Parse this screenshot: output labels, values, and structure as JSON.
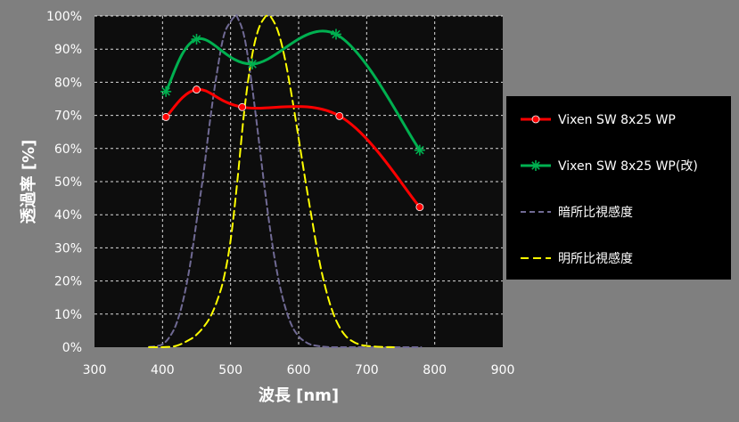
{
  "chart_data": {
    "type": "line",
    "xlabel": "波長 [nm]",
    "ylabel": "透過率 [%]",
    "xlim": [
      300,
      900
    ],
    "ylim": [
      0,
      100
    ],
    "x_ticks": [
      "300",
      "400",
      "500",
      "600",
      "700",
      "800",
      "900"
    ],
    "y_ticks": [
      "0%",
      "10%",
      "20%",
      "30%",
      "40%",
      "50%",
      "60%",
      "70%",
      "80%",
      "90%",
      "100%"
    ],
    "grid": true,
    "legend_position": "right",
    "colors": {
      "background": "#7f7f7f",
      "plot_area": "#0d0d0d",
      "grid": "#ffffff",
      "text": "#ffffff"
    },
    "series": [
      {
        "name": "Vixen SW 8x25 WP",
        "color": "#ff0000",
        "marker": "circle",
        "line_style": "solid",
        "x": [
          405,
          450,
          517,
          660,
          778
        ],
        "y": [
          69.5,
          77.8,
          72.5,
          69.8,
          42.3
        ]
      },
      {
        "name": "Vixen SW 8x25 WP(改)",
        "color": "#00b050",
        "marker": "asterisk",
        "line_style": "solid",
        "x": [
          405,
          450,
          532,
          655,
          778
        ],
        "y": [
          77.2,
          93.0,
          85.5,
          94.5,
          59.5
        ]
      },
      {
        "name": "暗所比視感度",
        "color": "#706a94",
        "marker": "none",
        "line_style": "dashed",
        "x": [
          380,
          390,
          400,
          410,
          420,
          430,
          440,
          450,
          460,
          470,
          480,
          490,
          500,
          507,
          510,
          520,
          530,
          540,
          550,
          560,
          570,
          580,
          590,
          600,
          610,
          620,
          640,
          660,
          700,
          780
        ],
        "y": [
          0.1,
          0.3,
          0.9,
          3.0,
          6.9,
          13.9,
          24.3,
          38.0,
          52.2,
          68.8,
          82.9,
          94.0,
          98.3,
          100,
          99.6,
          93.9,
          81.1,
          65.0,
          48.2,
          32.9,
          20.9,
          12.3,
          6.5,
          3.3,
          1.6,
          0.7,
          0.1,
          0.0,
          0.0,
          0.0
        ]
      },
      {
        "name": "明所比視感度",
        "color": "#ffff00",
        "marker": "none",
        "line_style": "dashed",
        "x": [
          380,
          400,
          420,
          440,
          450,
          460,
          470,
          480,
          490,
          500,
          510,
          520,
          530,
          540,
          550,
          555,
          560,
          570,
          580,
          590,
          600,
          610,
          620,
          630,
          640,
          650,
          660,
          670,
          680,
          690,
          700,
          720,
          740
        ],
        "y": [
          0.0,
          0.04,
          0.4,
          2.3,
          3.8,
          6.0,
          9.1,
          13.9,
          20.8,
          32.3,
          50.3,
          71.0,
          86.2,
          95.4,
          99.5,
          100,
          99.5,
          95.2,
          87.0,
          75.7,
          63.1,
          50.3,
          38.1,
          26.5,
          17.5,
          10.7,
          6.1,
          3.2,
          1.7,
          0.8,
          0.4,
          0.1,
          0.0
        ]
      }
    ]
  }
}
